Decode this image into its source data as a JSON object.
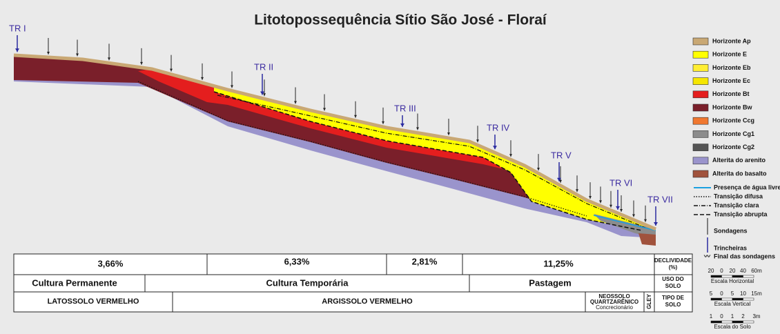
{
  "title": "Litotopossequência Sítio São José - Floraí",
  "trenches": [
    "TR I",
    "TR II",
    "TR III",
    "TR IV",
    "TR V",
    "TR VI",
    "TR VII"
  ],
  "legend": [
    {
      "label": "Horizonte Ap",
      "color": "#c9a874"
    },
    {
      "label": "Horizonte E",
      "color": "#ffff00"
    },
    {
      "label": "Horizonte Eb",
      "color": "#ffee33"
    },
    {
      "label": "Horizonte Ec",
      "color": "#f5e600"
    },
    {
      "label": "Horizonte Bt",
      "color": "#e41e1e"
    },
    {
      "label": "Horizonte Bw",
      "color": "#7a1f2a"
    },
    {
      "label": "Horizonte Ccg",
      "color": "#f07830"
    },
    {
      "label": "Horizonte Cg1",
      "color": "#8c8c8c"
    },
    {
      "label": "Horizonte Cg2",
      "color": "#555555"
    },
    {
      "label": "Alterita do arenito",
      "color": "#9a94cc"
    },
    {
      "label": "Alterita do basalto",
      "color": "#a0523c"
    }
  ],
  "legend_lines": [
    "Presença de água livre",
    "Transição difusa",
    "Transição clara",
    "Transição abrupta"
  ],
  "legend_symbols": [
    "Sondagens",
    "Trincheiras",
    "Final das sondagens"
  ],
  "table": {
    "declividade": {
      "label": [
        "DECLIVIDADE",
        "(%)"
      ],
      "values": [
        "3,66%",
        "6,33%",
        "2,81%",
        "11,25%"
      ]
    },
    "uso": {
      "label": [
        "USO DO",
        "SOLO"
      ],
      "values": [
        "Cultura Permanente",
        "Cultura Temporária",
        "Pastagem"
      ]
    },
    "solo": {
      "label": [
        "TIPO DE",
        "SOLO"
      ],
      "values": [
        "LATOSSOLO VERMELHO",
        "ARGISSOLO VERMELHO",
        [
          "NEOSSOLO",
          "QUARTZARÊNICO",
          "Concrecionário"
        ],
        "GLEY"
      ]
    }
  },
  "scales": [
    {
      "ticks": [
        "20",
        "0",
        "20",
        "40",
        "60m"
      ],
      "label": "Escala Horizontal"
    },
    {
      "ticks": [
        "5",
        "0",
        "5",
        "10",
        "15m"
      ],
      "label": "Escala Vertical"
    },
    {
      "ticks": [
        "1",
        "0",
        "1",
        "2",
        "3m"
      ],
      "label": "Escala do Solo"
    }
  ]
}
